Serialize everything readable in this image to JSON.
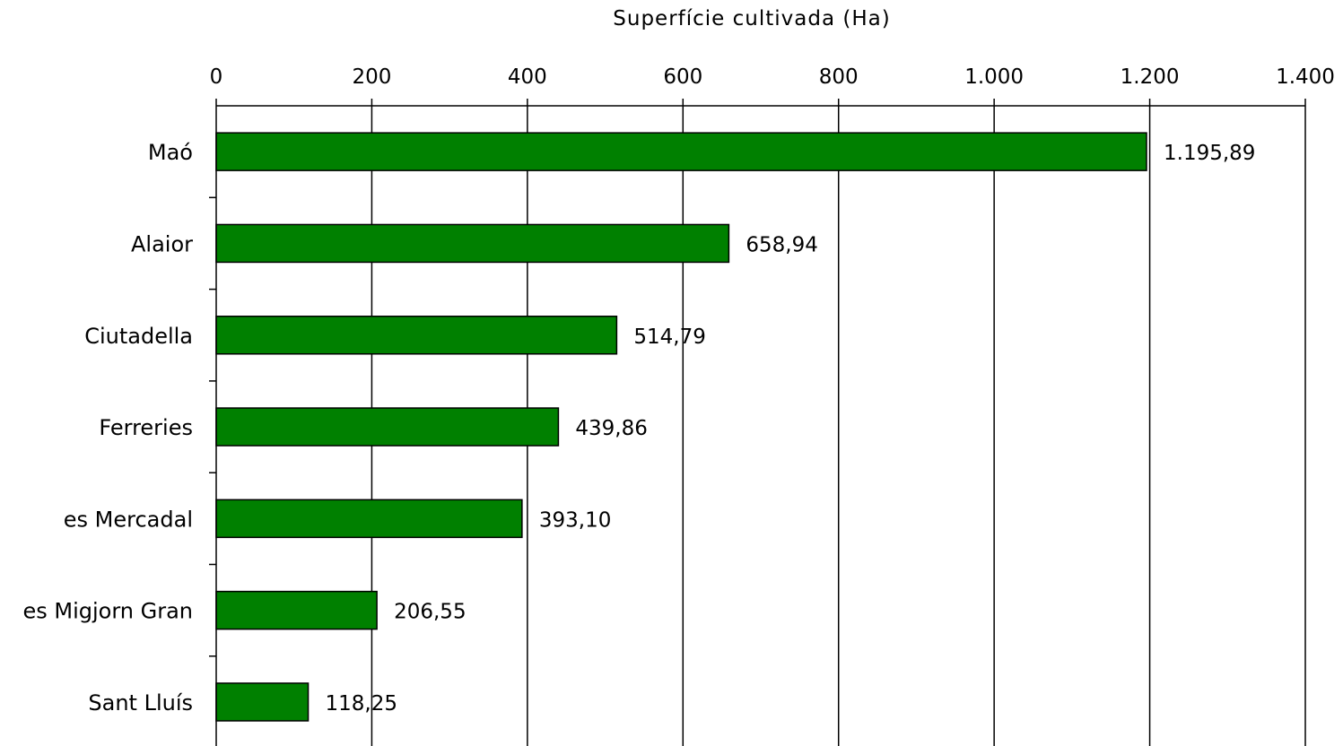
{
  "chart_data": {
    "type": "bar",
    "orientation": "horizontal",
    "xlabel": "Superfície cultivada (Ha)",
    "xlim": [
      0,
      1400
    ],
    "xticks": [
      0,
      200,
      400,
      600,
      800,
      1000,
      1200,
      1400
    ],
    "xtick_labels": [
      "0",
      "200",
      "400",
      "600",
      "800",
      "1.000",
      "1.200",
      "1.400"
    ],
    "categories": [
      "Maó",
      "Alaior",
      "Ciutadella",
      "Ferreries",
      "es Mercadal",
      "es Migjorn Gran",
      "Sant Lluís"
    ],
    "values": [
      1195.89,
      658.94,
      514.79,
      439.86,
      393.1,
      206.55,
      118.25
    ],
    "value_labels": [
      "1.195,89",
      "658,94",
      "514,79",
      "439,86",
      "393,10",
      "206,55",
      "118,25"
    ],
    "bar_color": "#008000",
    "grid": "vertical",
    "legend": "none"
  }
}
